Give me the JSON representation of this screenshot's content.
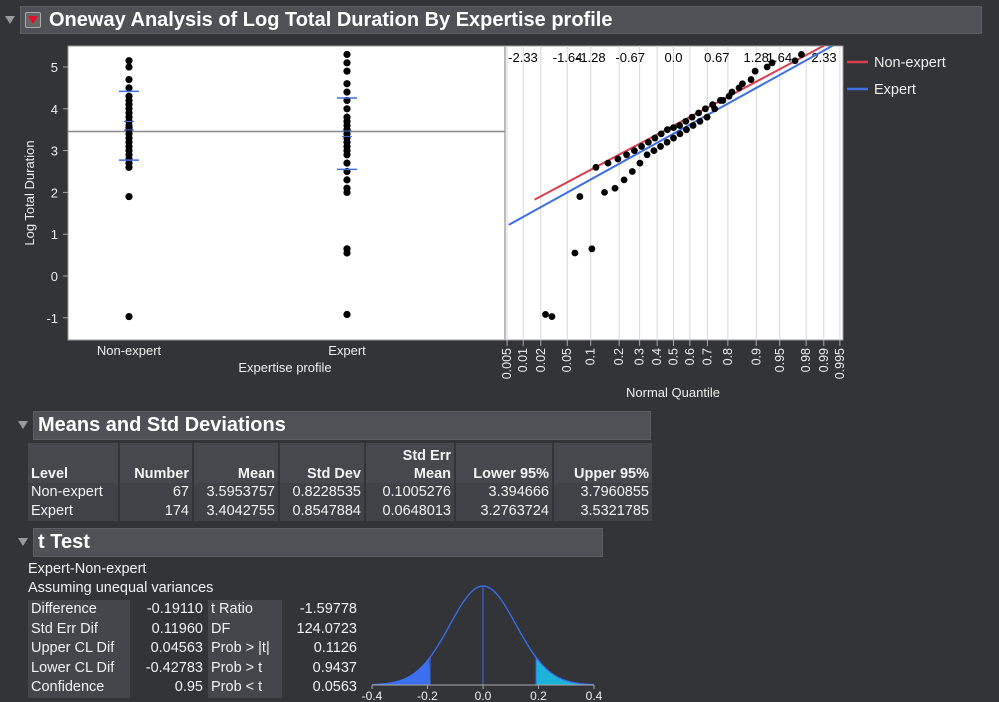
{
  "title": "Oneway Analysis of Log Total Duration By Expertise profile",
  "chart_data": [
    {
      "type": "scatter",
      "name": "oneway",
      "ylabel": "Log Total Duration",
      "xlabel": "Expertise profile",
      "ylim": [
        -1.5,
        5.5
      ],
      "yticks": [
        -1,
        0,
        1,
        2,
        3,
        4,
        5
      ],
      "categories": [
        "Non-expert",
        "Expert"
      ],
      "grand_mean": 3.4573,
      "groups": [
        {
          "name": "Non-expert",
          "mean": 3.5953757,
          "sd": 0.8228535,
          "se": 0.1005276,
          "values": [
            -0.97,
            1.9,
            2.6,
            2.7,
            2.8,
            2.9,
            3.0,
            3.1,
            3.2,
            3.3,
            3.4,
            3.5,
            3.55,
            3.6,
            3.7,
            3.8,
            3.9,
            4.0,
            4.1,
            4.2,
            4.3,
            4.5,
            4.7,
            5.0,
            5.15
          ]
        },
        {
          "name": "Expert",
          "mean": 3.4042755,
          "sd": 0.8547884,
          "se": 0.0648013,
          "values": [
            -0.92,
            0.55,
            0.65,
            2.0,
            2.1,
            2.3,
            2.5,
            2.7,
            2.9,
            3.0,
            3.1,
            3.2,
            3.3,
            3.4,
            3.5,
            3.6,
            3.7,
            3.8,
            4.0,
            4.2,
            4.4,
            4.6,
            4.9,
            5.1,
            5.3
          ]
        }
      ]
    },
    {
      "type": "line",
      "name": "normal-quantile",
      "xlabel": "Normal Quantile",
      "top_ticks": [
        "-2.33",
        "-1.64",
        "-1.28",
        "-0.67",
        "0.0",
        "0.67",
        "1.28",
        "1.64",
        "2.33"
      ],
      "bottom_ticks": [
        "0.005",
        "0.01",
        "0.02",
        "0.05",
        "0.1",
        "0.2",
        "0.3",
        "0.4",
        "0.5",
        "0.6",
        "0.7",
        "0.8",
        "0.9",
        "0.95",
        "0.98",
        "0.99",
        "0.995"
      ],
      "legend": [
        {
          "name": "Non-expert",
          "color": "#d9404f"
        },
        {
          "name": "Expert",
          "color": "#3f6fe0"
        }
      ],
      "legend_position": "right"
    },
    {
      "type": "area",
      "name": "t-distribution",
      "xlim": [
        -0.4,
        0.4
      ],
      "xticks": [
        "-0.4",
        "-0.2",
        "0.0",
        "0.2",
        "0.4"
      ],
      "difference": -0.1911,
      "se": 0.1196
    }
  ],
  "means": {
    "header": "Means and Std Deviations",
    "columns": [
      "Level",
      "Number",
      "Mean",
      "Std Dev",
      "Std Err Mean",
      "Lower 95%",
      "Upper 95%"
    ],
    "rows": [
      [
        "Non-expert",
        "67",
        "3.5953757",
        "0.8228535",
        "0.1005276",
        "3.394666",
        "3.7960855"
      ],
      [
        "Expert",
        "174",
        "3.4042755",
        "0.8547884",
        "0.0648013",
        "3.2763724",
        "3.5321785"
      ]
    ]
  },
  "ttest": {
    "header": "t Test",
    "line1": "Expert-Non-expert",
    "line2": "Assuming unequal variances",
    "rows": [
      [
        "Difference",
        "-0.19110",
        "t Ratio",
        "-1.59778"
      ],
      [
        "Std Err Dif",
        "0.11960",
        "DF",
        "124.0723"
      ],
      [
        "Upper CL Dif",
        "0.04563",
        "Prob > |t|",
        "0.1126"
      ],
      [
        "Lower CL Dif",
        "-0.42783",
        "Prob > t",
        "0.9437"
      ],
      [
        "Confidence",
        "0.95",
        "Prob < t",
        "0.0563"
      ]
    ]
  }
}
